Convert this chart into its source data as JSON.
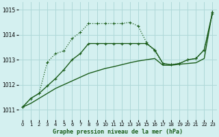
{
  "title": "Graphe pression niveau de la mer (hPa)",
  "background_color": "#d4f0f0",
  "grid_color": "#aed8d8",
  "line_color": "#1a5c1a",
  "ylim": [
    1010.6,
    1015.3
  ],
  "yticks": [
    1011,
    1012,
    1013,
    1014,
    1015
  ],
  "x_ticks": [
    0,
    1,
    2,
    3,
    4,
    5,
    6,
    7,
    8,
    9,
    10,
    11,
    12,
    13,
    14,
    15,
    16,
    17,
    18,
    19,
    20,
    21,
    22,
    23
  ],
  "curve_straight_x": [
    0,
    1,
    2,
    3,
    4,
    5,
    6,
    7,
    8,
    9,
    10,
    11,
    12,
    13,
    14,
    15,
    16,
    17,
    18,
    19,
    20,
    21,
    22,
    23
  ],
  "curve_straight_y": [
    1011.1,
    1011.25,
    1011.45,
    1011.65,
    1011.85,
    1012.0,
    1012.15,
    1012.3,
    1012.45,
    1012.55,
    1012.65,
    1012.72,
    1012.8,
    1012.88,
    1012.95,
    1013.0,
    1013.05,
    1012.78,
    1012.78,
    1012.82,
    1012.85,
    1012.88,
    1013.05,
    1014.95
  ],
  "curve_dotted_x": [
    0,
    1,
    2,
    3,
    4,
    5,
    6,
    7,
    8,
    9,
    10,
    11,
    12,
    13,
    14,
    15,
    16,
    17,
    18,
    19,
    20,
    21,
    22,
    23
  ],
  "curve_dotted_y": [
    1011.1,
    1011.45,
    1011.65,
    1012.9,
    1013.25,
    1013.35,
    1013.85,
    1014.1,
    1014.45,
    1014.45,
    1014.45,
    1014.45,
    1014.45,
    1014.5,
    1014.35,
    1013.7,
    1013.35,
    1012.85,
    1012.8,
    1012.85,
    1013.0,
    1013.05,
    1013.4,
    1014.85
  ],
  "curve_solid_x": [
    0,
    1,
    2,
    3,
    4,
    5,
    6,
    7,
    8,
    9,
    10,
    11,
    12,
    13,
    14,
    15,
    16,
    17,
    18,
    19,
    20,
    21,
    22,
    23
  ],
  "curve_solid_y": [
    1011.1,
    1011.45,
    1011.65,
    1011.95,
    1012.25,
    1012.6,
    1013.0,
    1013.25,
    1013.65,
    1013.65,
    1013.65,
    1013.65,
    1013.65,
    1013.65,
    1013.65,
    1013.65,
    1013.4,
    1012.85,
    1012.8,
    1012.85,
    1013.0,
    1013.05,
    1013.4,
    1014.9
  ]
}
